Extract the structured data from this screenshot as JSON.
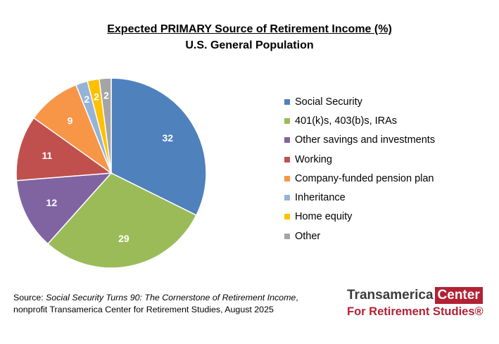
{
  "chart_data": {
    "type": "pie",
    "title": "Expected PRIMARY Source of Retirement Income (%)",
    "subtitle": "U.S. General Population",
    "legend_position": "right",
    "slices": [
      {
        "label": "Social Security",
        "value": 32,
        "color": "#4f81bd"
      },
      {
        "label": "401(k)s, 403(b)s, IRAs",
        "value": 29,
        "color": "#9bbb59"
      },
      {
        "label": "Other savings and investments",
        "value": 12,
        "color": "#8064a2"
      },
      {
        "label": "Working",
        "value": 11,
        "color": "#c0504d"
      },
      {
        "label": "Company-funded pension plan",
        "value": 9,
        "color": "#f79646"
      },
      {
        "label": "Inheritance",
        "value": 2,
        "color": "#95b3d7"
      },
      {
        "label": "Home equity",
        "value": 2,
        "color": "#ffc000"
      },
      {
        "label": "Other",
        "value": 2,
        "color": "#a5a5a5"
      }
    ]
  },
  "source": {
    "prefix": "Source: ",
    "italic": "Social Security Turns 90: The Cornerstone of Retirement Income",
    "suffix": ",",
    "line2": "nonprofit Transamerica Center for Retirement Studies, August 2025"
  },
  "logo": {
    "word1": "Transamerica",
    "word2": "Center",
    "line2": "For Retirement Studies®"
  }
}
